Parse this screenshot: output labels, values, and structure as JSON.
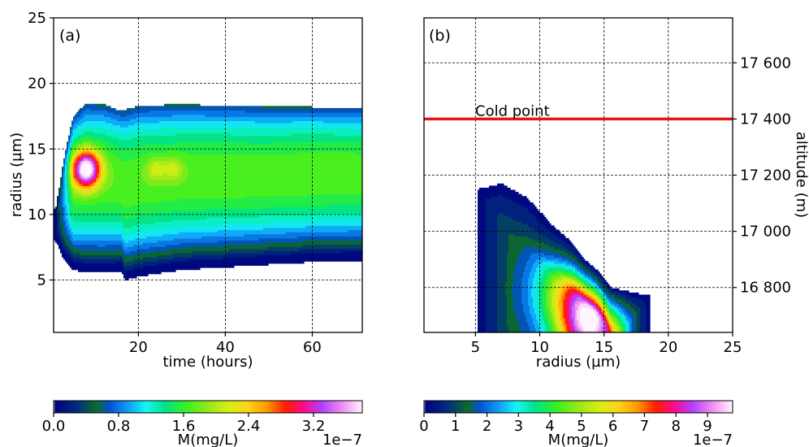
{
  "chart_data": [
    {
      "type": "heatmap",
      "panel_label": "(a)",
      "xlabel": "time (hours)",
      "ylabel": "radius (µm)",
      "xlim": [
        0.5,
        71.5
      ],
      "ylim": [
        1,
        25
      ],
      "xticks": [
        20,
        40,
        60
      ],
      "yticks": [
        5,
        10,
        15,
        20,
        25
      ],
      "grid": true,
      "colorbar": {
        "label": "M(mg/L)",
        "exponent": "1e−7",
        "range": [
          0,
          3.8
        ],
        "ticks": [
          "0.0",
          "0.8",
          "1.6",
          "2.4",
          "3.2"
        ],
        "tick_values": [
          0,
          0.8,
          1.6,
          2.4,
          3.2
        ]
      },
      "features": [
        {
          "description": "outer envelope lower radius vs time",
          "x": [
            1,
            3,
            5,
            8,
            12,
            16,
            17,
            20,
            30,
            40,
            50,
            60,
            71
          ],
          "y": [
            8.0,
            6.5,
            5.8,
            5.6,
            5.6,
            5.7,
            5.0,
            5.3,
            5.8,
            6.0,
            6.2,
            6.4,
            6.5
          ]
        },
        {
          "description": "outer envelope upper radius vs time",
          "x": [
            1,
            3,
            5,
            8,
            12,
            16,
            20,
            30,
            40,
            50,
            60,
            71
          ],
          "y": [
            10.5,
            14.5,
            17.5,
            18.5,
            18.4,
            17.9,
            18.3,
            18.4,
            18.3,
            18.2,
            18.2,
            18.1
          ]
        },
        {
          "description": "early maximum",
          "x": 8,
          "y": 13.5,
          "value": 3.8
        },
        {
          "description": "secondary maxima",
          "x": [
            24,
            28
          ],
          "y": [
            13.5,
            13.5
          ],
          "value": 2.0
        }
      ]
    },
    {
      "type": "heatmap",
      "panel_label": "(b)",
      "xlabel": "radius (µm)",
      "ylabel": "altitude (m)",
      "xlim": [
        1,
        25
      ],
      "ylim": [
        16640,
        17760
      ],
      "xticks": [
        5,
        10,
        15,
        20,
        25
      ],
      "yticks": [
        16800,
        17000,
        17200,
        17400,
        17600
      ],
      "ytick_labels": [
        "16 800",
        "17 000",
        "17 200",
        "17 400",
        "17 600"
      ],
      "grid": true,
      "annotation": {
        "text": "Cold point",
        "altitude": 17400,
        "color": "#e8141c"
      },
      "colorbar": {
        "label": "M(mg/L)",
        "exponent": "1e−7",
        "range": [
          0,
          9.8
        ],
        "ticks": [
          "0",
          "1",
          "2",
          "3",
          "4",
          "5",
          "6",
          "7",
          "8",
          "9"
        ],
        "tick_values": [
          0,
          1,
          2,
          3,
          4,
          5,
          6,
          7,
          8,
          9
        ]
      },
      "features": [
        {
          "description": "envelope outline (radius, altitude)",
          "x": [
            5.2,
            7.0,
            9.0,
            11.0,
            12.5,
            13.5,
            14.5,
            15.5,
            17.5,
            18.6,
            18.6,
            5.2
          ],
          "y": [
            17150,
            17170,
            17120,
            17020,
            16960,
            16900,
            16860,
            16800,
            16780,
            16770,
            16640,
            16640
          ]
        },
        {
          "description": "maximum near bottom",
          "x": 14,
          "y": 16680,
          "value": 9.8
        }
      ]
    }
  ]
}
